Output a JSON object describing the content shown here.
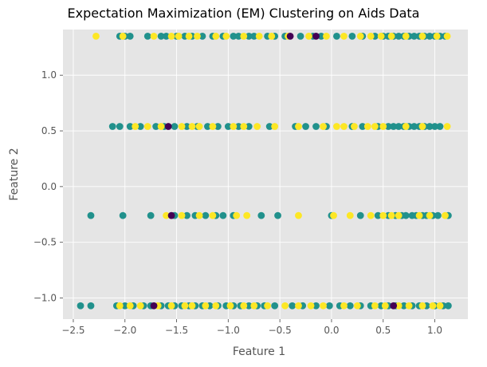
{
  "chart_data": {
    "type": "scatter",
    "title": "Expectation Maximization (EM) Clustering on Aids Data",
    "xlabel": "Feature 1",
    "ylabel": "Feature 2",
    "xlim": [
      -2.6,
      1.32
    ],
    "ylim": [
      -1.19,
      1.41
    ],
    "xticks": [
      -2.5,
      -2.0,
      -1.5,
      -1.0,
      -0.5,
      0.0,
      0.5,
      1.0
    ],
    "xtick_labels": [
      "−2.5",
      "−2.0",
      "−1.5",
      "−1.0",
      "−0.5",
      "0.0",
      "0.5",
      "1.0"
    ],
    "yticks": [
      -1.0,
      -0.5,
      0.0,
      0.5,
      1.0
    ],
    "ytick_labels": [
      "−1.0",
      "−0.5",
      "0.0",
      "0.5",
      "1.0"
    ],
    "grid": true,
    "background": "#e5e5e5",
    "gridColor": "#ffffff",
    "cluster_colors": [
      "#440154",
      "#21918c",
      "#fde725"
    ],
    "points": [
      {
        "y": 1.35,
        "cluster": 1,
        "x": [
          -2.05,
          -2.0,
          -1.95,
          -1.78,
          -1.65,
          -1.6,
          -1.5,
          -1.42,
          -1.35,
          -1.25,
          -1.15,
          -1.05,
          -0.95,
          -0.9,
          -0.8,
          -0.75,
          -0.62,
          -0.55,
          -0.45,
          -0.3,
          -0.18,
          -0.1,
          0.05,
          0.2,
          0.3,
          0.42,
          0.5,
          0.55,
          0.6,
          0.65,
          0.7,
          0.75,
          0.8,
          0.85,
          0.9,
          0.95,
          1.0,
          1.05,
          1.1
        ]
      },
      {
        "y": 1.35,
        "cluster": 2,
        "x": [
          -2.28,
          -2.02,
          -1.72,
          -1.55,
          -1.48,
          -1.38,
          -1.3,
          -1.12,
          -1.02,
          -0.85,
          -0.7,
          -0.58,
          -0.42,
          -0.22,
          -0.05,
          0.12,
          0.28,
          0.38,
          0.48,
          0.58,
          0.72,
          0.88,
          1.02,
          1.12
        ]
      },
      {
        "y": 1.35,
        "cluster": 0,
        "x": [
          -0.4,
          -0.15
        ]
      },
      {
        "y": 0.54,
        "cluster": 1,
        "x": [
          -2.12,
          -2.05,
          -1.95,
          -1.85,
          -1.7,
          -1.62,
          -1.52,
          -1.4,
          -1.3,
          -1.2,
          -1.1,
          -1.0,
          -0.9,
          -0.8,
          -0.6,
          -0.35,
          -0.25,
          -0.15,
          -0.05,
          0.2,
          0.3,
          0.45,
          0.55,
          0.6,
          0.65,
          0.7,
          0.75,
          0.8,
          0.85,
          0.9,
          0.95,
          1.0,
          1.05
        ]
      },
      {
        "y": 0.54,
        "cluster": 2,
        "x": [
          -1.9,
          -1.78,
          -1.65,
          -1.45,
          -1.35,
          -1.28,
          -1.15,
          -0.95,
          -0.85,
          -0.72,
          -0.55,
          -0.32,
          -0.08,
          0.05,
          0.12,
          0.22,
          0.35,
          0.42,
          0.5,
          0.72,
          0.88,
          1.12
        ]
      },
      {
        "y": 0.54,
        "cluster": 0,
        "x": [
          -1.58
        ]
      },
      {
        "y": -0.26,
        "cluster": 1,
        "x": [
          -2.33,
          -2.02,
          -1.75,
          -1.52,
          -1.4,
          -1.32,
          -1.22,
          -1.12,
          -1.05,
          -0.95,
          -0.68,
          -0.52,
          0.0,
          0.28,
          0.45,
          0.55,
          0.62,
          0.68,
          0.72,
          0.78,
          0.82,
          0.88,
          0.92,
          0.98,
          1.03,
          1.13
        ]
      },
      {
        "y": -0.26,
        "cluster": 2,
        "x": [
          -1.6,
          -1.45,
          -1.28,
          -1.15,
          -0.92,
          -0.82,
          -0.32,
          0.02,
          0.18,
          0.38,
          0.5,
          0.58,
          0.65,
          0.85,
          0.95,
          1.1
        ]
      },
      {
        "y": -0.26,
        "cluster": 0,
        "x": [
          -1.55
        ]
      },
      {
        "y": -1.07,
        "cluster": 1,
        "x": [
          -2.43,
          -2.33,
          -2.08,
          -2.0,
          -1.92,
          -1.82,
          -1.75,
          -1.65,
          -1.58,
          -1.52,
          -1.45,
          -1.38,
          -1.32,
          -1.25,
          -1.18,
          -1.1,
          -1.02,
          -0.95,
          -0.88,
          -0.8,
          -0.72,
          -0.65,
          -0.55,
          -0.38,
          -0.28,
          -0.15,
          -0.02,
          0.08,
          0.18,
          0.28,
          0.38,
          0.48,
          0.55,
          0.62,
          0.7,
          0.78,
          0.85,
          0.92,
          1.0,
          1.08,
          1.13
        ]
      },
      {
        "y": -1.07,
        "cluster": 2,
        "x": [
          -2.05,
          -1.95,
          -1.85,
          -1.68,
          -1.55,
          -1.42,
          -1.35,
          -1.22,
          -1.12,
          -0.98,
          -0.85,
          -0.75,
          -0.62,
          -0.45,
          -0.32,
          -0.2,
          -0.08,
          0.12,
          0.25,
          0.42,
          0.52,
          0.65,
          0.75,
          0.88,
          0.98,
          1.05
        ]
      },
      {
        "y": -1.07,
        "cluster": 0,
        "x": [
          -1.72,
          0.6
        ]
      }
    ]
  }
}
